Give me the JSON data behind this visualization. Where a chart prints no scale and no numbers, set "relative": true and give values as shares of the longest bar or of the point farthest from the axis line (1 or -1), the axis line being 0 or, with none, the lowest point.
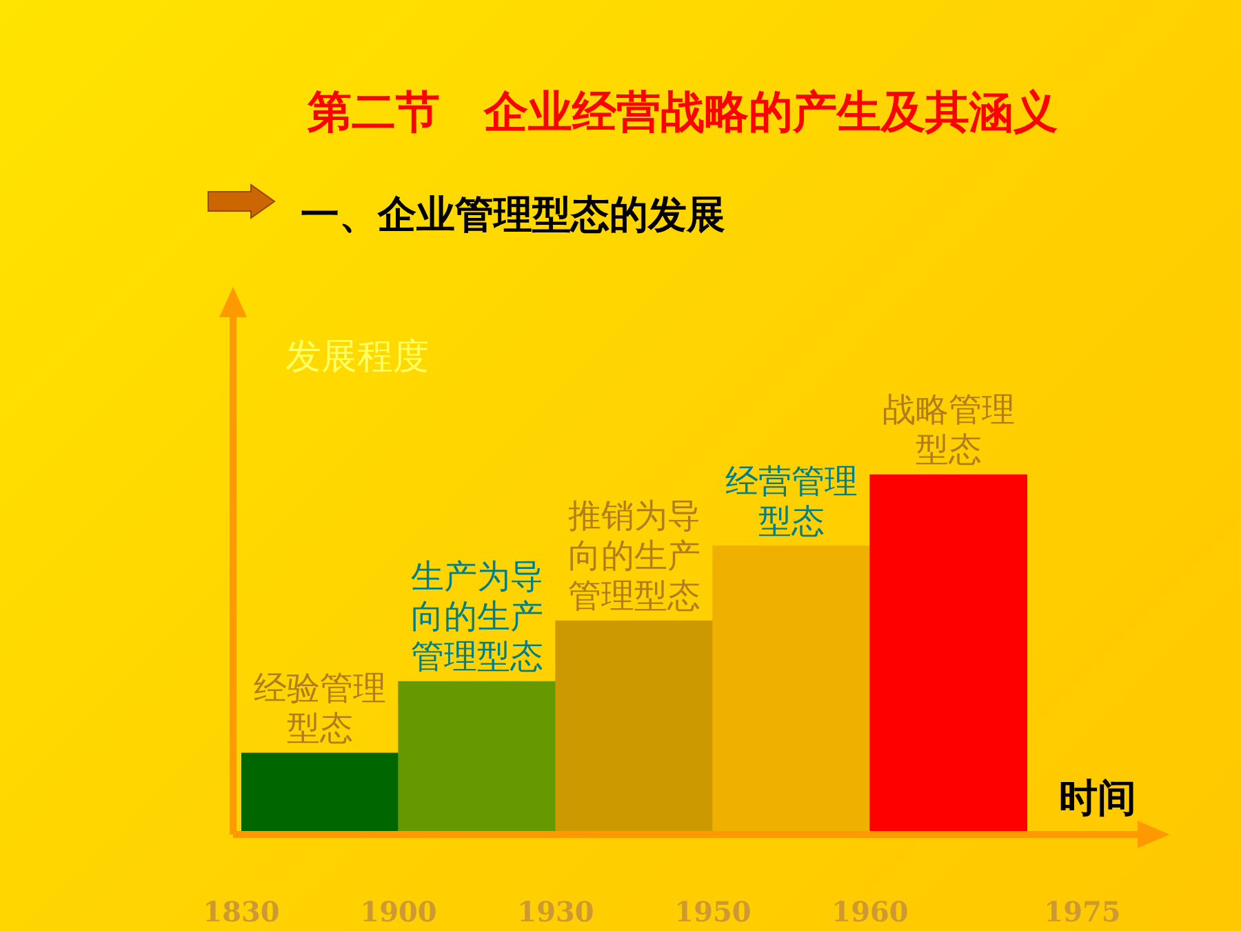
{
  "chart_data": {
    "type": "bar",
    "title": "第二节　企业经营战略的产生及其涵义",
    "subtitle": "一、企业管理型态的发展",
    "xlabel": "时间",
    "ylabel": "发展程度",
    "categories": [
      "经验管理型态",
      "生产为导向的生产管理型态",
      "推销为导向的生产管理型态",
      "经营管理型态",
      "战略管理型态"
    ],
    "values": [
      0.22,
      0.42,
      0.59,
      0.8,
      1
    ],
    "colors": [
      "#006600",
      "#669900",
      "#cc9900",
      "#f0b000",
      "#ff0000"
    ],
    "relative": true,
    "tick_labels": false,
    "legend": false,
    "annotations": [
      "1830",
      "1900",
      "1930",
      "1950",
      "1960",
      "1975"
    ]
  }
}
